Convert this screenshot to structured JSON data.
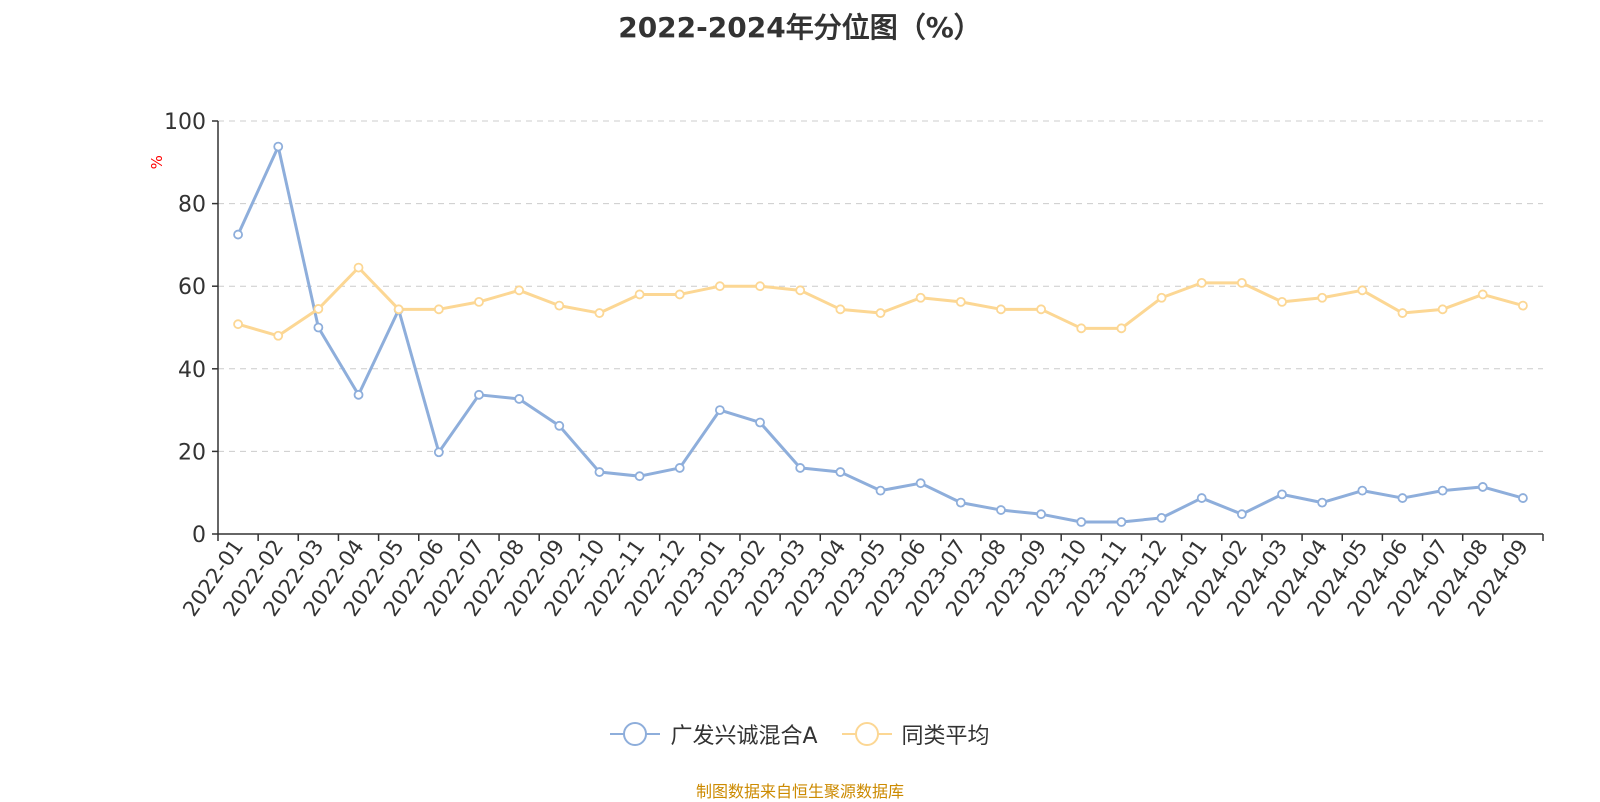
{
  "chart_data": {
    "type": "line",
    "title": "2022-2024年分位图（%）",
    "ylabel": "%",
    "xlabel": "",
    "ylim": [
      0,
      100
    ],
    "yticks": [
      0,
      20,
      40,
      60,
      80,
      100
    ],
    "grid": true,
    "legend_position": "bottom",
    "categories": [
      "2022-01",
      "2022-02",
      "2022-03",
      "2022-04",
      "2022-05",
      "2022-06",
      "2022-07",
      "2022-08",
      "2022-09",
      "2022-10",
      "2022-11",
      "2022-12",
      "2023-01",
      "2023-02",
      "2023-03",
      "2023-04",
      "2023-05",
      "2023-06",
      "2023-07",
      "2023-08",
      "2023-09",
      "2023-10",
      "2023-11",
      "2023-12",
      "2024-01",
      "2024-02",
      "2024-03",
      "2024-04",
      "2024-05",
      "2024-06",
      "2024-07",
      "2024-08",
      "2024-09"
    ],
    "series": [
      {
        "name": "广发兴诚混合A",
        "color": "#8eaedb",
        "values": [
          72.5,
          93.8,
          50.0,
          33.7,
          54.3,
          19.8,
          33.7,
          32.7,
          26.2,
          15.0,
          14.0,
          16.0,
          30.0,
          27.0,
          16.0,
          15.0,
          10.5,
          12.3,
          7.6,
          5.8,
          4.8,
          2.9,
          2.9,
          3.9,
          8.7,
          4.8,
          9.6,
          7.6,
          10.5,
          8.7,
          10.5,
          11.4,
          8.7
        ]
      },
      {
        "name": "同类平均",
        "color": "#fcd794",
        "values": [
          50.8,
          48.0,
          54.5,
          64.5,
          54.4,
          54.4,
          56.2,
          59.0,
          55.3,
          53.5,
          58.0,
          58.0,
          60.0,
          60.0,
          59.0,
          54.4,
          53.5,
          57.2,
          56.2,
          54.4,
          54.4,
          49.8,
          49.8,
          57.2,
          60.8,
          60.8,
          56.2,
          57.2,
          59.0,
          53.5,
          54.4,
          58.0,
          55.3
        ]
      }
    ]
  },
  "source_note": "制图数据来自恒生聚源数据库",
  "colors": {
    "axis": "#333333",
    "grid": "#cccccc",
    "ylabel": "#ff0000",
    "source": "#cc8a00"
  }
}
